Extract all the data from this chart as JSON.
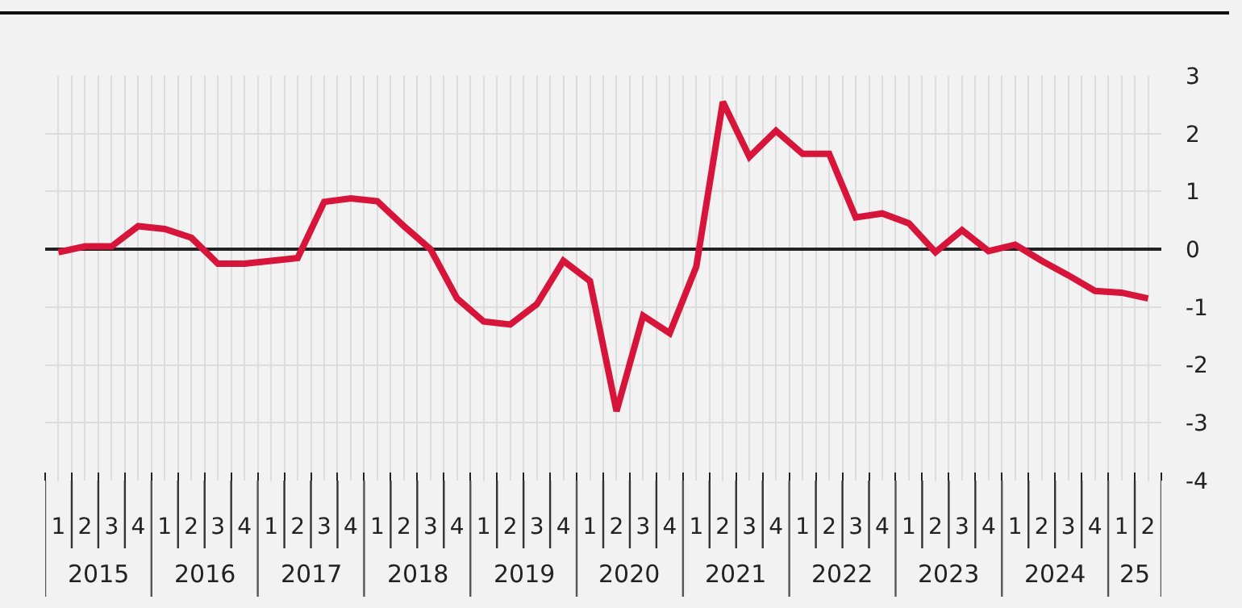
{
  "chart_data": {
    "type": "line",
    "categories": [
      "1",
      "2",
      "3",
      "4",
      "1",
      "2",
      "3",
      "4",
      "1",
      "2",
      "3",
      "4",
      "1",
      "2",
      "3",
      "4",
      "1",
      "2",
      "3",
      "4",
      "1",
      "2",
      "3",
      "4",
      "1",
      "2",
      "3",
      "4",
      "1",
      "2",
      "3",
      "4",
      "1",
      "2",
      "3",
      "4",
      "1",
      "2",
      "3",
      "4",
      "1",
      "2"
    ],
    "series": [
      {
        "color": "#d7153a",
        "values": [
          -0.05,
          0.05,
          0.05,
          0.4,
          0.35,
          0.2,
          -0.25,
          -0.25,
          -0.2,
          -0.15,
          0.82,
          0.88,
          0.83,
          0.4,
          0.0,
          -0.85,
          -1.25,
          -1.3,
          -0.95,
          -0.2,
          -0.55,
          -2.8,
          -1.15,
          -1.45,
          -0.3,
          2.55,
          1.6,
          2.05,
          1.65,
          1.65,
          0.55,
          0.62,
          0.45,
          -0.05,
          0.33,
          -0.03,
          0.08,
          -0.2,
          -0.45,
          -0.72,
          -0.75,
          -0.85
        ]
      }
    ],
    "annotations": [
      "2015",
      "2016",
      "2017",
      "2018",
      "2019",
      "2020",
      "2021",
      "2022",
      "2023",
      "2024",
      "25"
    ],
    "ylim": [
      -4,
      3
    ],
    "yticks": [
      -4,
      -3,
      -2,
      -1,
      0,
      1,
      2,
      3
    ],
    "grid": true,
    "marker": "none",
    "line_style": "solid"
  }
}
